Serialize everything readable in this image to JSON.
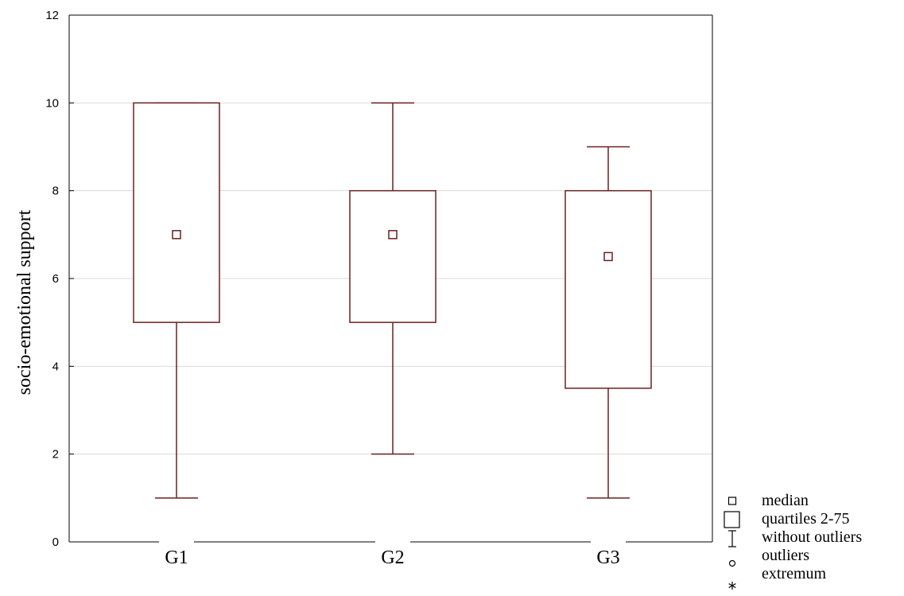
{
  "chart_data": {
    "type": "boxplot",
    "title": "",
    "xlabel": "",
    "ylabel": "socio-emotional support",
    "ylim": [
      0,
      12
    ],
    "yticks": [
      0,
      2,
      4,
      6,
      8,
      10,
      12
    ],
    "grid": true,
    "legend_position": "bottom-right",
    "categories": [
      "G1",
      "G2",
      "G3"
    ],
    "boxes": [
      {
        "category": "G1",
        "median": 7,
        "q1": 5,
        "q3": 10,
        "whisker_low": 1,
        "whisker_high": 10
      },
      {
        "category": "G2",
        "median": 7,
        "q1": 5,
        "q3": 8,
        "whisker_low": 2,
        "whisker_high": 10
      },
      {
        "category": "G3",
        "median": 6.5,
        "q1": 3.5,
        "q3": 8,
        "whisker_low": 1,
        "whisker_high": 9
      }
    ],
    "legend": [
      {
        "symbol": "median-square",
        "label": "median"
      },
      {
        "symbol": "box",
        "label": "quartiles 2-75"
      },
      {
        "symbol": "whisker",
        "label": "without outliers"
      },
      {
        "symbol": "circle",
        "label": "outliers"
      },
      {
        "symbol": "asterisk",
        "label": "extremum"
      }
    ],
    "colors": {
      "mark": "#6b2020",
      "grid": "#d9d9d9",
      "axis": "#000000"
    }
  }
}
